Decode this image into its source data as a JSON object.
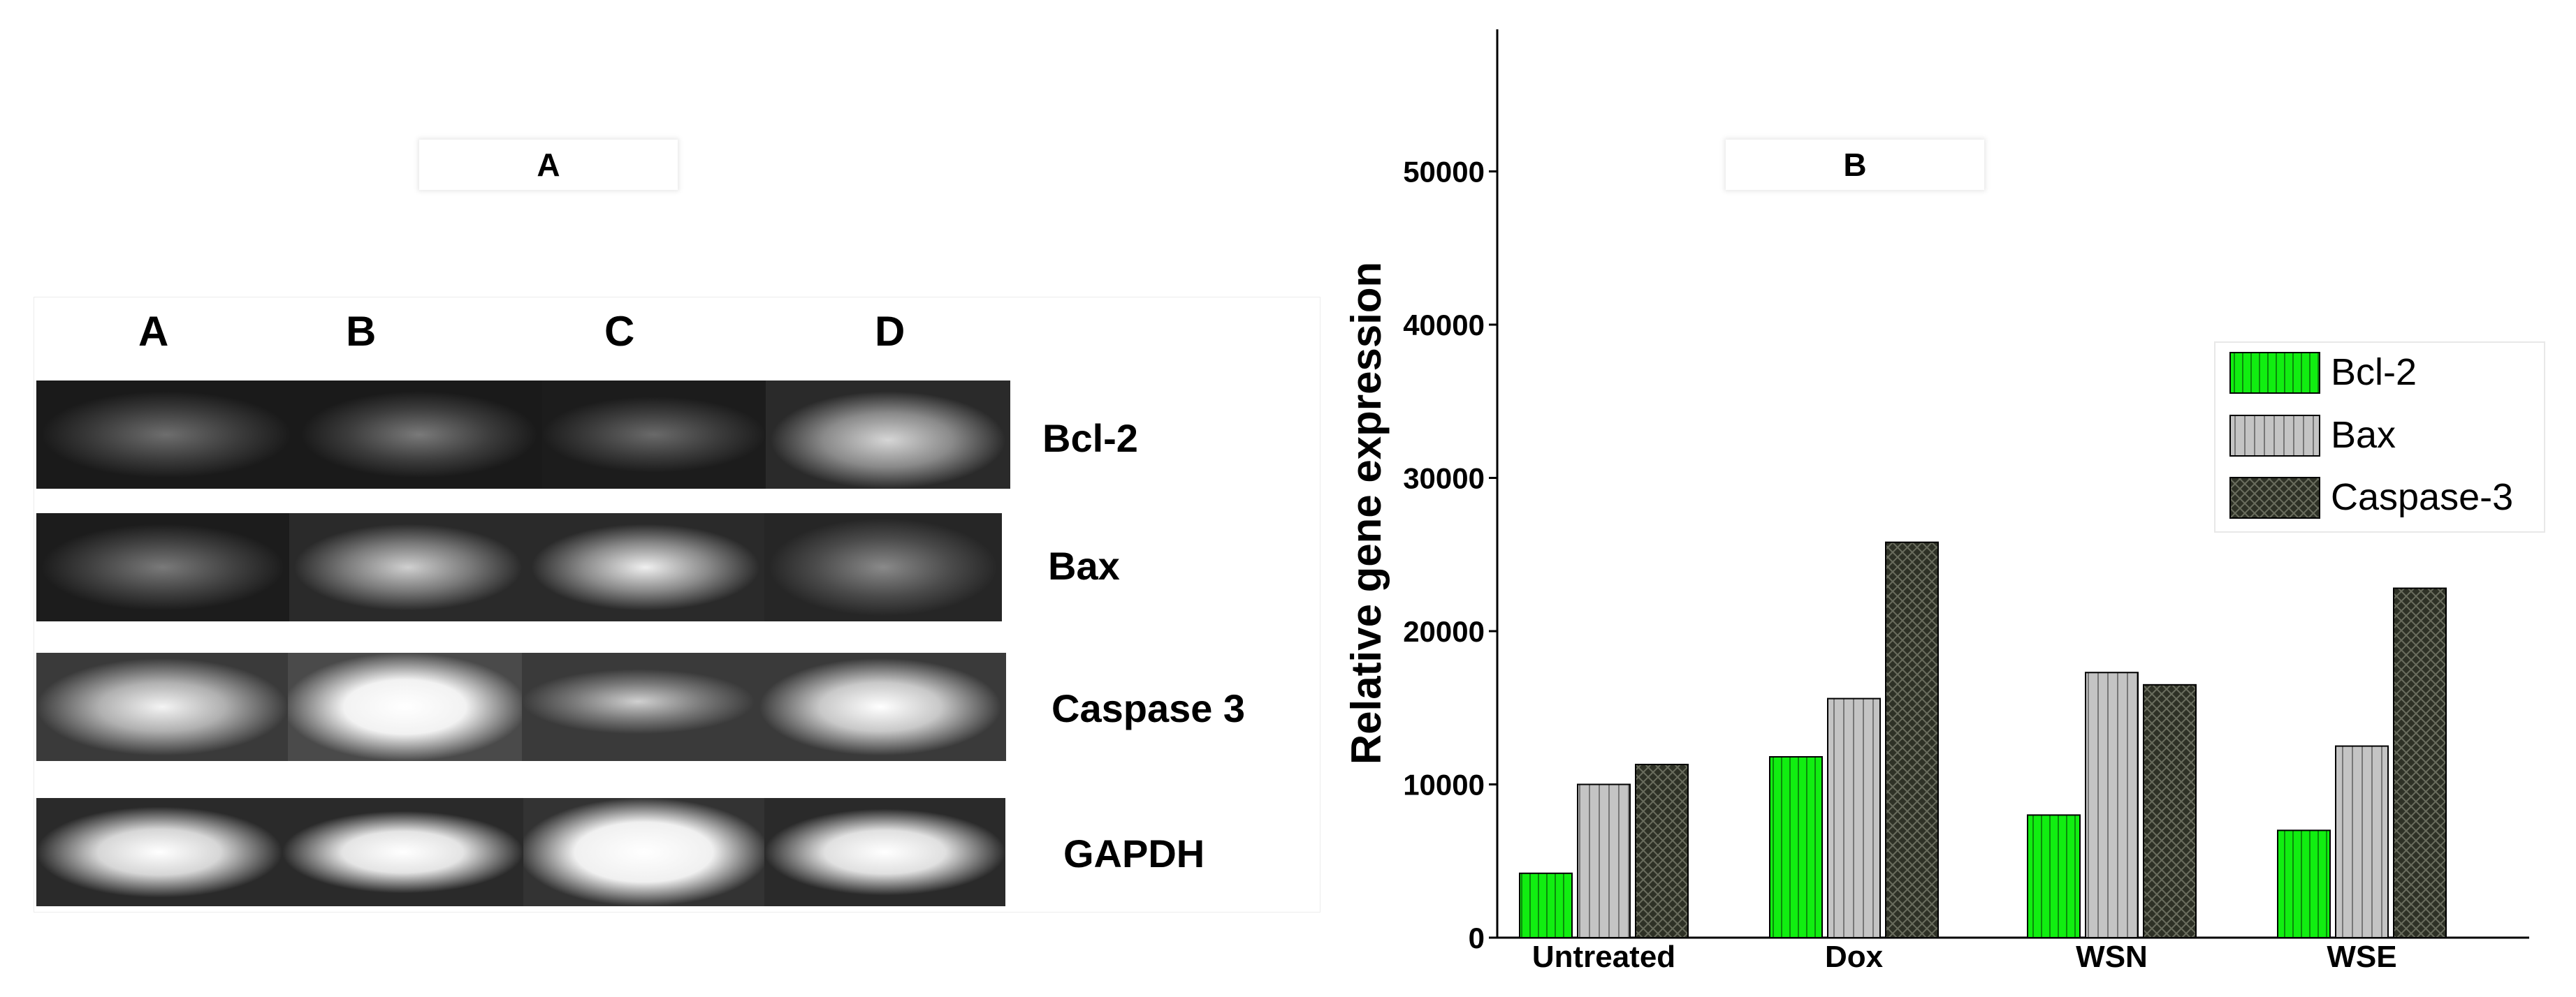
{
  "panel_a": {
    "label": "A",
    "lanes": [
      "A",
      "B",
      "C",
      "D"
    ],
    "genes": [
      "Bcl-2",
      "Bax",
      "Caspase 3",
      "GAPDH"
    ]
  },
  "panel_b": {
    "label": "B"
  },
  "colors": {
    "bcl2": "#11ee11",
    "bax": "#c4c4c4",
    "caspase3": "#2e3126"
  },
  "chart_data": {
    "type": "bar",
    "categories": [
      "Untreated",
      "Dox",
      "WSN",
      "WSE"
    ],
    "series": [
      {
        "name": "Bcl-2",
        "values": [
          4200,
          11800,
          8000,
          7000
        ]
      },
      {
        "name": "Bax",
        "values": [
          10000,
          15600,
          17300,
          12500
        ]
      },
      {
        "name": "Caspase-3",
        "values": [
          11300,
          25800,
          16500,
          22800
        ]
      }
    ],
    "xlabel": "",
    "ylabel": "Relative gene expression",
    "ylim": [
      0,
      59000
    ],
    "yticks": [
      0,
      10000,
      20000,
      30000,
      40000,
      50000
    ],
    "legend_position": "right",
    "grid": false
  }
}
